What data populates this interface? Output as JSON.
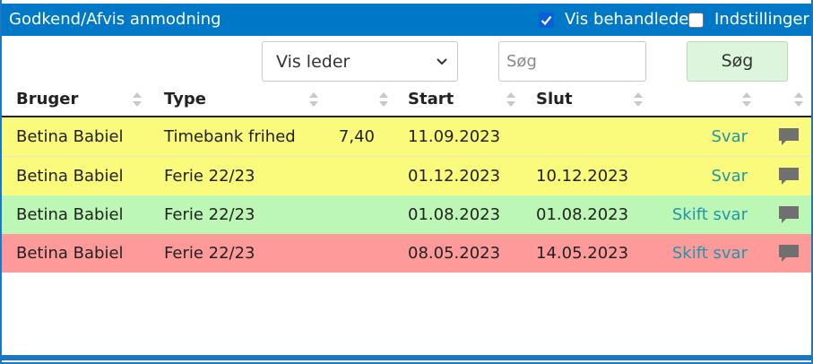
{
  "header": {
    "title": "Godkend/Afvis anmodning",
    "show_processed": {
      "label": "Vis behandlede",
      "checked": true
    },
    "settings": {
      "label": "Indstillinger",
      "checked": false
    }
  },
  "filters": {
    "leader_select": {
      "value": "Vis leder",
      "icon": "chevron-down-icon"
    },
    "search": {
      "placeholder": "Søg",
      "value": ""
    },
    "search_button": "Søg"
  },
  "table": {
    "columns": [
      "Bruger",
      "Type",
      "",
      "Start",
      "Slut",
      "",
      ""
    ],
    "rows": [
      {
        "user": "Betina Babiel",
        "type": "Timebank frihed",
        "hours": "7,40",
        "start": "11.09.2023",
        "end": "",
        "action": "Svar",
        "status": "pending",
        "color": "#fafa7c"
      },
      {
        "user": "Betina Babiel",
        "type": "Ferie 22/23",
        "hours": "",
        "start": "01.12.2023",
        "end": "10.12.2023",
        "action": "Svar",
        "status": "pending",
        "color": "#fafa7c"
      },
      {
        "user": "Betina Babiel",
        "type": "Ferie 22/23",
        "hours": "",
        "start": "01.08.2023",
        "end": "01.08.2023",
        "action": "Skift svar",
        "status": "approved",
        "color": "#bdf7b6"
      },
      {
        "user": "Betina Babiel",
        "type": "Ferie 22/23",
        "hours": "",
        "start": "08.05.2023",
        "end": "14.05.2023",
        "action": "Skift svar",
        "status": "rejected",
        "color": "#ff9a9a"
      }
    ]
  },
  "colors": {
    "titlebar": "#0078c8",
    "link": "#2196a8",
    "comment_icon": "#707070"
  }
}
